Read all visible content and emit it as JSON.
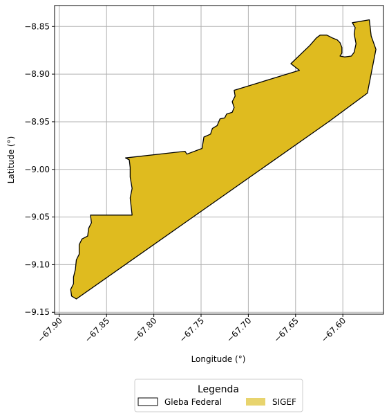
{
  "chart_data": {
    "type": "map",
    "xlabel": "Longitude (°)",
    "ylabel": "Latitude (°)",
    "xlim": [
      -67.905,
      -67.557
    ],
    "ylim": [
      -9.152,
      -8.828
    ],
    "xticks": [
      -67.9,
      -67.85,
      -67.8,
      -67.75,
      -67.7,
      -67.65,
      -67.6
    ],
    "xtick_labels": [
      "−67.90",
      "−67.85",
      "−67.80",
      "−67.75",
      "−67.70",
      "−67.65",
      "−67.60"
    ],
    "yticks": [
      -8.85,
      -8.9,
      -8.95,
      -9.0,
      -9.05,
      -9.1,
      -9.15
    ],
    "ytick_labels": [
      "−8.85",
      "−8.90",
      "−8.95",
      "−9.00",
      "−9.05",
      "−9.10",
      "−9.15"
    ],
    "grid": true,
    "legend": {
      "title": "Legenda",
      "placement": "bottom-center",
      "entries": [
        {
          "label": "Gleba Federal",
          "style": "outline",
          "color": "#000000"
        },
        {
          "label": "SIGEF",
          "style": "fill",
          "color": "#e8d46e"
        }
      ]
    },
    "series": [
      {
        "name": "Gleba Federal",
        "fill": "#dfbb1f",
        "stroke": "#000000",
        "polygon": [
          [
            -67.882,
            -9.136
          ],
          [
            -67.887,
            -9.133
          ],
          [
            -67.888,
            -9.126
          ],
          [
            -67.885,
            -9.12
          ],
          [
            -67.885,
            -9.113
          ],
          [
            -67.883,
            -9.105
          ],
          [
            -67.882,
            -9.095
          ],
          [
            -67.879,
            -9.089
          ],
          [
            -67.879,
            -9.079
          ],
          [
            -67.876,
            -9.073
          ],
          [
            -67.87,
            -9.07
          ],
          [
            -67.869,
            -9.062
          ],
          [
            -67.866,
            -9.056
          ],
          [
            -67.867,
            -9.048
          ],
          [
            -67.823,
            -9.048
          ],
          [
            -67.825,
            -9.03
          ],
          [
            -67.823,
            -9.02
          ],
          [
            -67.825,
            -9.008
          ],
          [
            -67.825,
            -8.998
          ],
          [
            -67.826,
            -8.99
          ],
          [
            -67.83,
            -8.988
          ],
          [
            -67.767,
            -8.981
          ],
          [
            -67.765,
            -8.984
          ],
          [
            -67.749,
            -8.978
          ],
          [
            -67.747,
            -8.966
          ],
          [
            -67.74,
            -8.963
          ],
          [
            -67.738,
            -8.957
          ],
          [
            -67.733,
            -8.954
          ],
          [
            -67.73,
            -8.947
          ],
          [
            -67.725,
            -8.946
          ],
          [
            -67.723,
            -8.942
          ],
          [
            -67.717,
            -8.94
          ],
          [
            -67.715,
            -8.935
          ],
          [
            -67.717,
            -8.929
          ],
          [
            -67.714,
            -8.923
          ],
          [
            -67.715,
            -8.917
          ],
          [
            -67.646,
            -8.896
          ],
          [
            -67.655,
            -8.889
          ],
          [
            -67.635,
            -8.87
          ],
          [
            -67.628,
            -8.862
          ],
          [
            -67.624,
            -8.859
          ],
          [
            -67.617,
            -8.859
          ],
          [
            -67.611,
            -8.862
          ],
          [
            -67.606,
            -8.864
          ],
          [
            -67.603,
            -8.867
          ],
          [
            -67.601,
            -8.872
          ],
          [
            -67.601,
            -8.878
          ],
          [
            -67.603,
            -8.881
          ],
          [
            -67.598,
            -8.882
          ],
          [
            -67.591,
            -8.881
          ],
          [
            -67.588,
            -8.877
          ],
          [
            -67.586,
            -8.868
          ],
          [
            -67.588,
            -8.858
          ],
          [
            -67.587,
            -8.851
          ],
          [
            -67.59,
            -8.846
          ],
          [
            -67.572,
            -8.843
          ],
          [
            -67.57,
            -8.86
          ],
          [
            -67.565,
            -8.874
          ],
          [
            -67.574,
            -8.92
          ],
          [
            -67.615,
            -8.95
          ],
          [
            -67.882,
            -9.136
          ]
        ]
      }
    ]
  }
}
